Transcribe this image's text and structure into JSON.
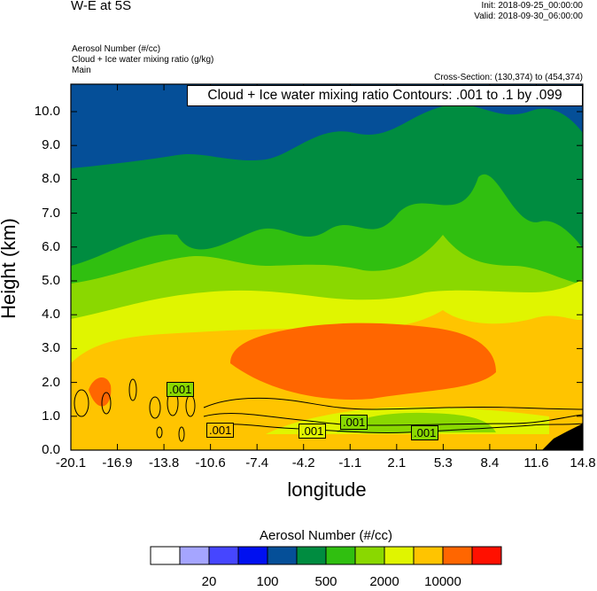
{
  "header": {
    "title": "W-E at 5S",
    "init": "Init: 2018-09-25_00:00:00",
    "valid": "Valid: 2018-09-30_06:00:00",
    "fields": [
      "Aerosol Number   (#/cc)",
      "Cloud + Ice water mixing ratio   (g/kg)",
      "Main"
    ],
    "cross_section": "Cross-Section: (130,374) to (454,374)"
  },
  "chart_data": {
    "type": "heatmap",
    "title": "W-E at 5S",
    "xlabel": "longitude",
    "ylabel": "Height (km)",
    "xlim": [
      -20.1,
      14.8
    ],
    "ylim": [
      0,
      10.8
    ],
    "xticks": [
      "-20.1",
      "-16.9",
      "-13.8",
      "-10.6",
      "-7.4",
      "-4.2",
      "-1.1",
      "2.1",
      "5.3",
      "8.4",
      "11.6",
      "14.8"
    ],
    "yticks": [
      "0.0",
      "1.0",
      "2.0",
      "3.0",
      "4.0",
      "5.0",
      "6.0",
      "7.0",
      "8.0",
      "9.0",
      "10.0"
    ],
    "contour_info": "Cloud + Ice water mixing ratio Contours: .001 to .1 by .099",
    "contour_labels": [
      ".001",
      ".001",
      ".001",
      ".001",
      ".001"
    ],
    "colorbar": {
      "title": "Aerosol Number  (#/cc)",
      "colors": [
        "#ffffff",
        "#a5a5ff",
        "#4646ff",
        "#0010f0",
        "#054f98",
        "#008c40",
        "#30bf10",
        "#8ad800",
        "#e0f500",
        "#ffc400",
        "#ff6600",
        "#ff1000"
      ],
      "labels": [
        "20",
        "100",
        "500",
        "2000",
        "10000"
      ]
    }
  }
}
